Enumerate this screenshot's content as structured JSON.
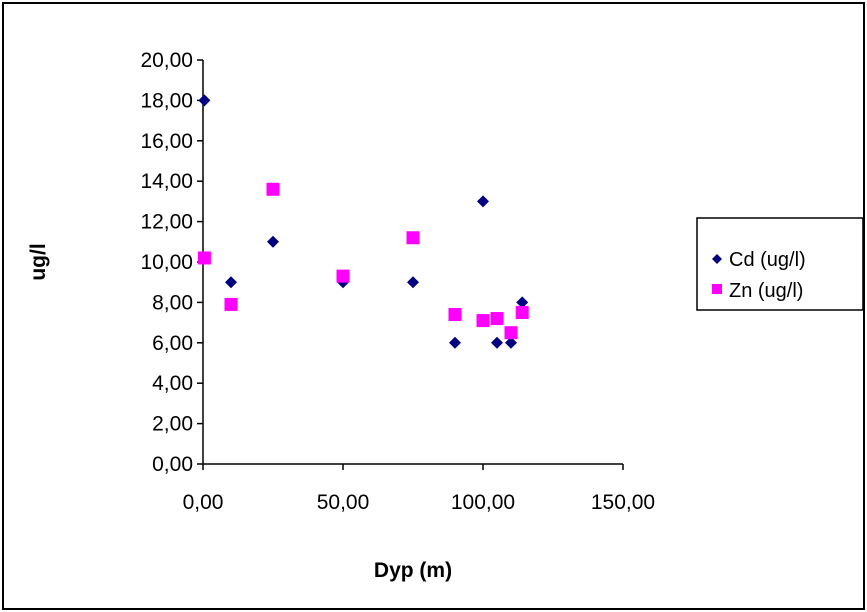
{
  "chart_data": {
    "type": "scatter",
    "title": "",
    "xlabel": "Dyp (m)",
    "ylabel": "ug/l",
    "xlim": [
      0,
      150
    ],
    "ylim": [
      0,
      20
    ],
    "xticks": [
      0,
      50,
      100,
      150
    ],
    "yticks": [
      0,
      2,
      4,
      6,
      8,
      10,
      12,
      14,
      16,
      18,
      20
    ],
    "xtick_labels": [
      "0,00",
      "50,00",
      "100,00",
      "150,00"
    ],
    "ytick_labels": [
      "0,00",
      "2,00",
      "4,00",
      "6,00",
      "8,00",
      "10,00",
      "12,00",
      "14,00",
      "16,00",
      "18,00",
      "20,00"
    ],
    "grid": false,
    "legend_position": "right",
    "series": [
      {
        "name": "Cd (ug/l)",
        "marker": "diamond",
        "color": "#000080",
        "x": [
          0.5,
          10,
          25,
          50,
          75,
          90,
          100,
          105,
          110,
          114
        ],
        "y": [
          18,
          9,
          11,
          9,
          9,
          6,
          13,
          6,
          6,
          8
        ]
      },
      {
        "name": "Zn (ug/l)",
        "marker": "square",
        "color": "#FF00FF",
        "x": [
          0.5,
          10,
          25,
          50,
          75,
          90,
          100,
          105,
          110,
          114
        ],
        "y": [
          10.2,
          7.9,
          13.6,
          9.3,
          11.2,
          7.4,
          7.1,
          7.2,
          6.5,
          7.5
        ]
      }
    ]
  }
}
